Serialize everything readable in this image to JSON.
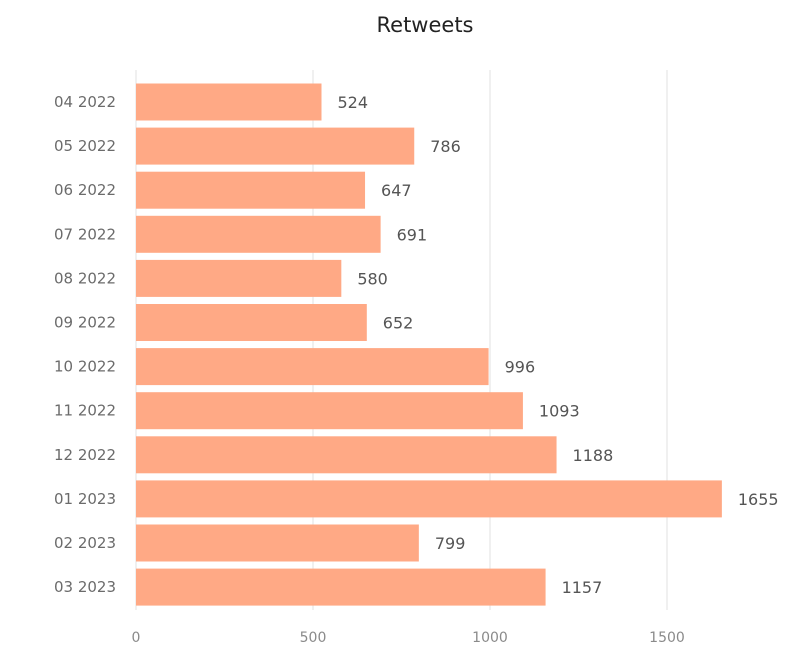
{
  "colors": {
    "bar": "#FFA985",
    "grid": "#e2e2e2"
  },
  "chart_data": {
    "type": "bar",
    "orientation": "horizontal",
    "title": "Retweets",
    "xlabel": "",
    "ylabel": "",
    "categories": [
      "04 2022",
      "05 2022",
      "06 2022",
      "07 2022",
      "08 2022",
      "09 2022",
      "10 2022",
      "11 2022",
      "12 2022",
      "01 2023",
      "02 2023",
      "03 2023"
    ],
    "values": [
      524,
      786,
      647,
      691,
      580,
      652,
      996,
      1093,
      1188,
      1655,
      799,
      1157
    ],
    "value_labels": [
      "524",
      "786",
      "647",
      "691",
      "580",
      "652",
      "996",
      "1093",
      "1188",
      "1655",
      "799",
      "1157"
    ],
    "xlim": [
      0,
      1800
    ],
    "xticks": [
      0,
      500,
      1000,
      1500
    ],
    "xtick_labels": [
      "0",
      "500",
      "1000",
      "1500"
    ],
    "grid": true,
    "legend": "none"
  }
}
